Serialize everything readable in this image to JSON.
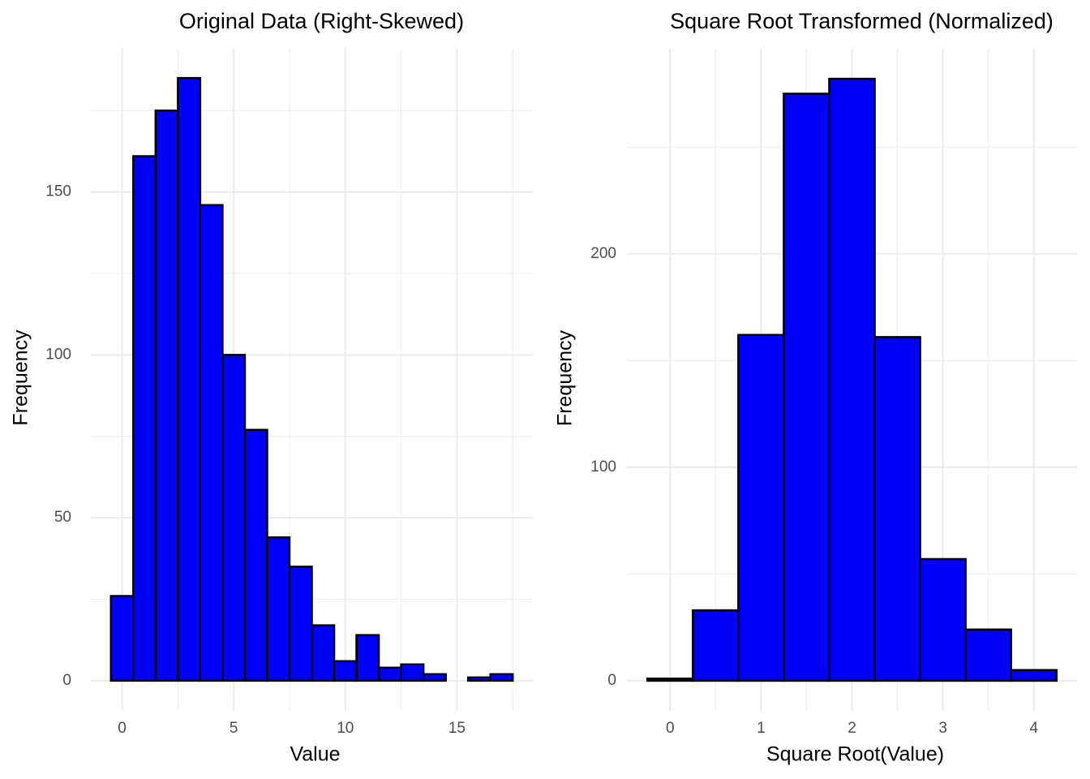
{
  "chart_data": [
    {
      "type": "histogram",
      "title": "Original Data (Right-Skewed)",
      "x_label": "Value",
      "y_label": "Frequency",
      "bins": [
        -0.5,
        0.5,
        1.5,
        2.5,
        3.5,
        4.5,
        5.5,
        6.5,
        7.5,
        8.5,
        9.5,
        10.5,
        11.5,
        12.5,
        13.5,
        14.5,
        15.5,
        16.5,
        17.5
      ],
      "values": [
        26,
        161,
        175,
        185,
        146,
        100,
        77,
        44,
        35,
        17,
        6,
        14,
        4,
        5,
        2,
        0,
        1,
        2
      ],
      "color": "#0000ff",
      "edgecolor": "#000000",
      "xlim": [
        -1.4,
        18.4
      ],
      "xticks": [
        0,
        5,
        10,
        15
      ],
      "ylim": [
        -9.25,
        194.25
      ],
      "yticks": [
        0,
        50,
        100,
        150
      ],
      "grid": true
    },
    {
      "type": "histogram",
      "title": "Square Root Transformed (Normalized)",
      "x_label": "Square Root(Value)",
      "y_label": "Frequency",
      "bins": [
        -0.25,
        0.25,
        0.75,
        1.25,
        1.75,
        2.25,
        2.75,
        3.25,
        3.75,
        4.25
      ],
      "values": [
        1,
        33,
        162,
        275,
        282,
        161,
        57,
        24,
        5
      ],
      "color": "#0000ff",
      "edgecolor": "#000000",
      "xlim": [
        -0.475,
        4.475
      ],
      "xticks": [
        0,
        1,
        2,
        3,
        4
      ],
      "ylim": [
        -14.1,
        296.1
      ],
      "yticks": [
        0,
        100,
        200
      ],
      "grid": true
    }
  ]
}
